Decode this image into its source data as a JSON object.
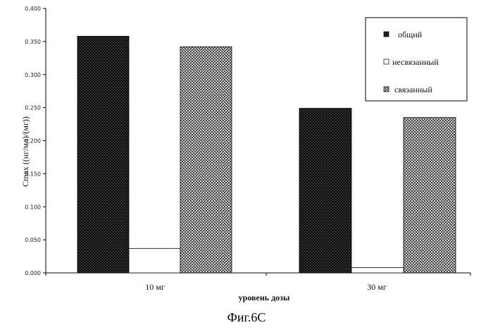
{
  "chart_data": {
    "type": "bar",
    "categories": [
      "10 мг",
      "30 мг"
    ],
    "series": [
      {
        "name": "общий",
        "values": [
          0.358,
          0.249
        ],
        "pattern": "dark"
      },
      {
        "name": "несвязанный",
        "values": [
          0.037,
          0.008
        ],
        "pattern": "white"
      },
      {
        "name": "связанный",
        "values": [
          0.342,
          0.235
        ],
        "pattern": "grey"
      }
    ],
    "xlabel": "уровень дозы",
    "ylabel": "Cmax ((нг/мл)/(мг))",
    "ylim": [
      0,
      0.4
    ],
    "yticks": [
      "0.000",
      "0.050",
      "0.100",
      "0.150",
      "0.200",
      "0.250",
      "0.300",
      "0.350",
      "0.400"
    ],
    "grid": false,
    "legend_position": "top-right",
    "colors": {
      "dark": "#1c1c1c",
      "white": "#ffffff",
      "grey": "#7a7a7a"
    }
  },
  "caption": "Фиг.6С"
}
